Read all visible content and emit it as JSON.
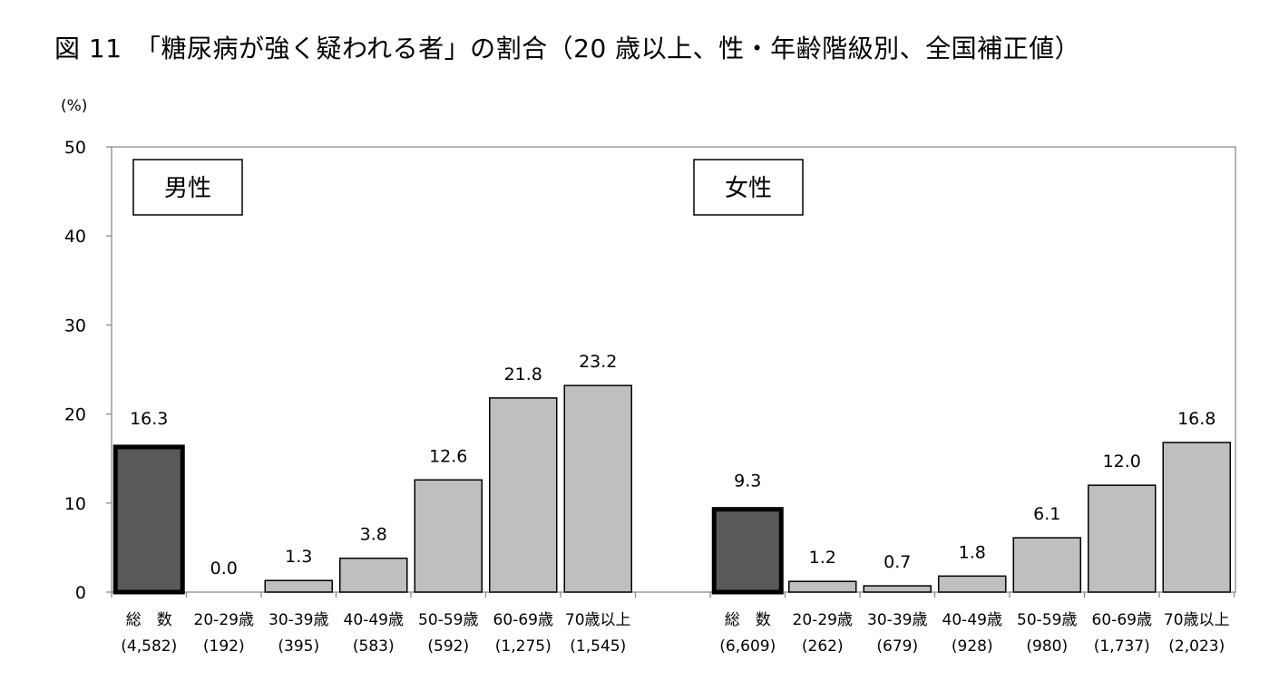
{
  "title": "図 11　「糖尿病が強く疑われる者」の割合（20 歳以上、性・年齢階級別、全国補正値）",
  "chart_data": {
    "type": "bar",
    "ylabel": "(%)",
    "ylim": [
      0,
      50
    ],
    "yticks": [
      0,
      10,
      20,
      30,
      40,
      50
    ],
    "grid": false,
    "groups": [
      {
        "name": "男性",
        "categories": [
          "総　数",
          "20-29歳",
          "30-39歳",
          "40-49歳",
          "50-59歳",
          "60-69歳",
          "70歳以上"
        ],
        "counts": [
          "(4,582)",
          "(192)",
          "(395)",
          "(583)",
          "(592)",
          "(1,275)",
          "(1,545)"
        ],
        "values": [
          16.3,
          0.0,
          1.3,
          3.8,
          12.6,
          21.8,
          23.2
        ],
        "labels": [
          "16.3",
          "0.0",
          "1.3",
          "3.8",
          "12.6",
          "21.8",
          "23.2"
        ]
      },
      {
        "name": "女性",
        "categories": [
          "総　数",
          "20-29歳",
          "30-39歳",
          "40-49歳",
          "50-59歳",
          "60-69歳",
          "70歳以上"
        ],
        "counts": [
          "(6,609)",
          "(262)",
          "(679)",
          "(928)",
          "(980)",
          "(1,737)",
          "(2,023)"
        ],
        "values": [
          9.3,
          1.2,
          0.7,
          1.8,
          6.1,
          12.0,
          16.8
        ],
        "labels": [
          "9.3",
          "1.2",
          "0.7",
          "1.8",
          "6.1",
          "12.0",
          "16.8"
        ]
      }
    ],
    "colors": {
      "total": "#595959",
      "age": "#bfbfbf",
      "stroke": "#000000"
    }
  }
}
